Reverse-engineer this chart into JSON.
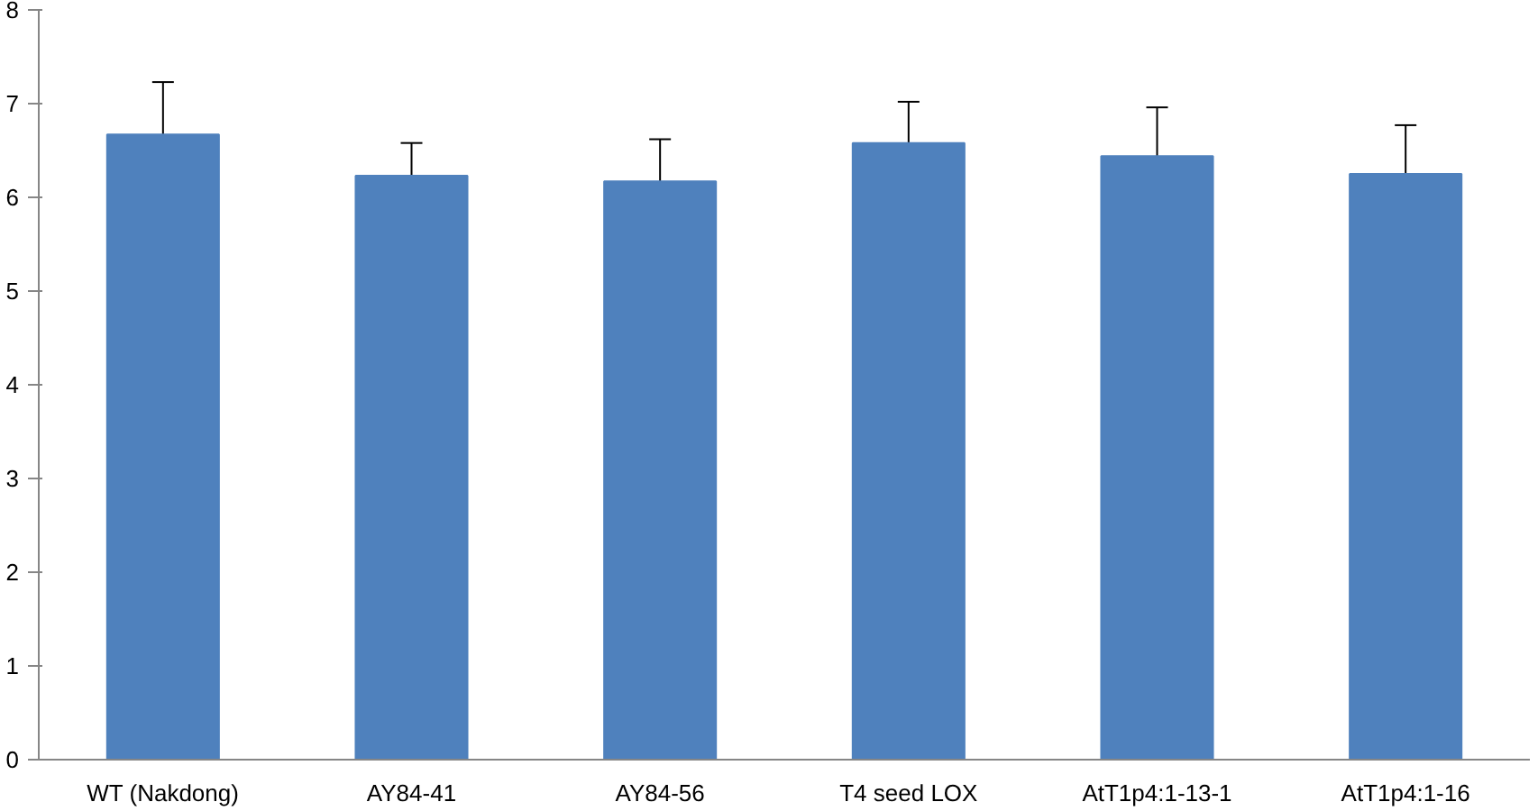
{
  "chart_data": {
    "type": "bar",
    "categories": [
      "WT (Nakdong)",
      "AY84-41",
      "AY84-56",
      "T4 seed LOX",
      "AtT1p4:1-13-1",
      "AtT1p4:1-16"
    ],
    "values": [
      6.67,
      6.23,
      6.17,
      6.58,
      6.44,
      6.25
    ],
    "errors": [
      [
        6.67,
        7.23
      ],
      [
        6.23,
        6.58
      ],
      [
        6.17,
        6.62
      ],
      [
        6.58,
        7.02
      ],
      [
        6.44,
        6.96
      ],
      [
        6.25,
        6.77
      ]
    ],
    "color": "#4f81bd",
    "ylim": [
      0,
      8
    ],
    "yticks": [
      0,
      1,
      2,
      3,
      4,
      5,
      6,
      7,
      8
    ],
    "grid": false
  }
}
